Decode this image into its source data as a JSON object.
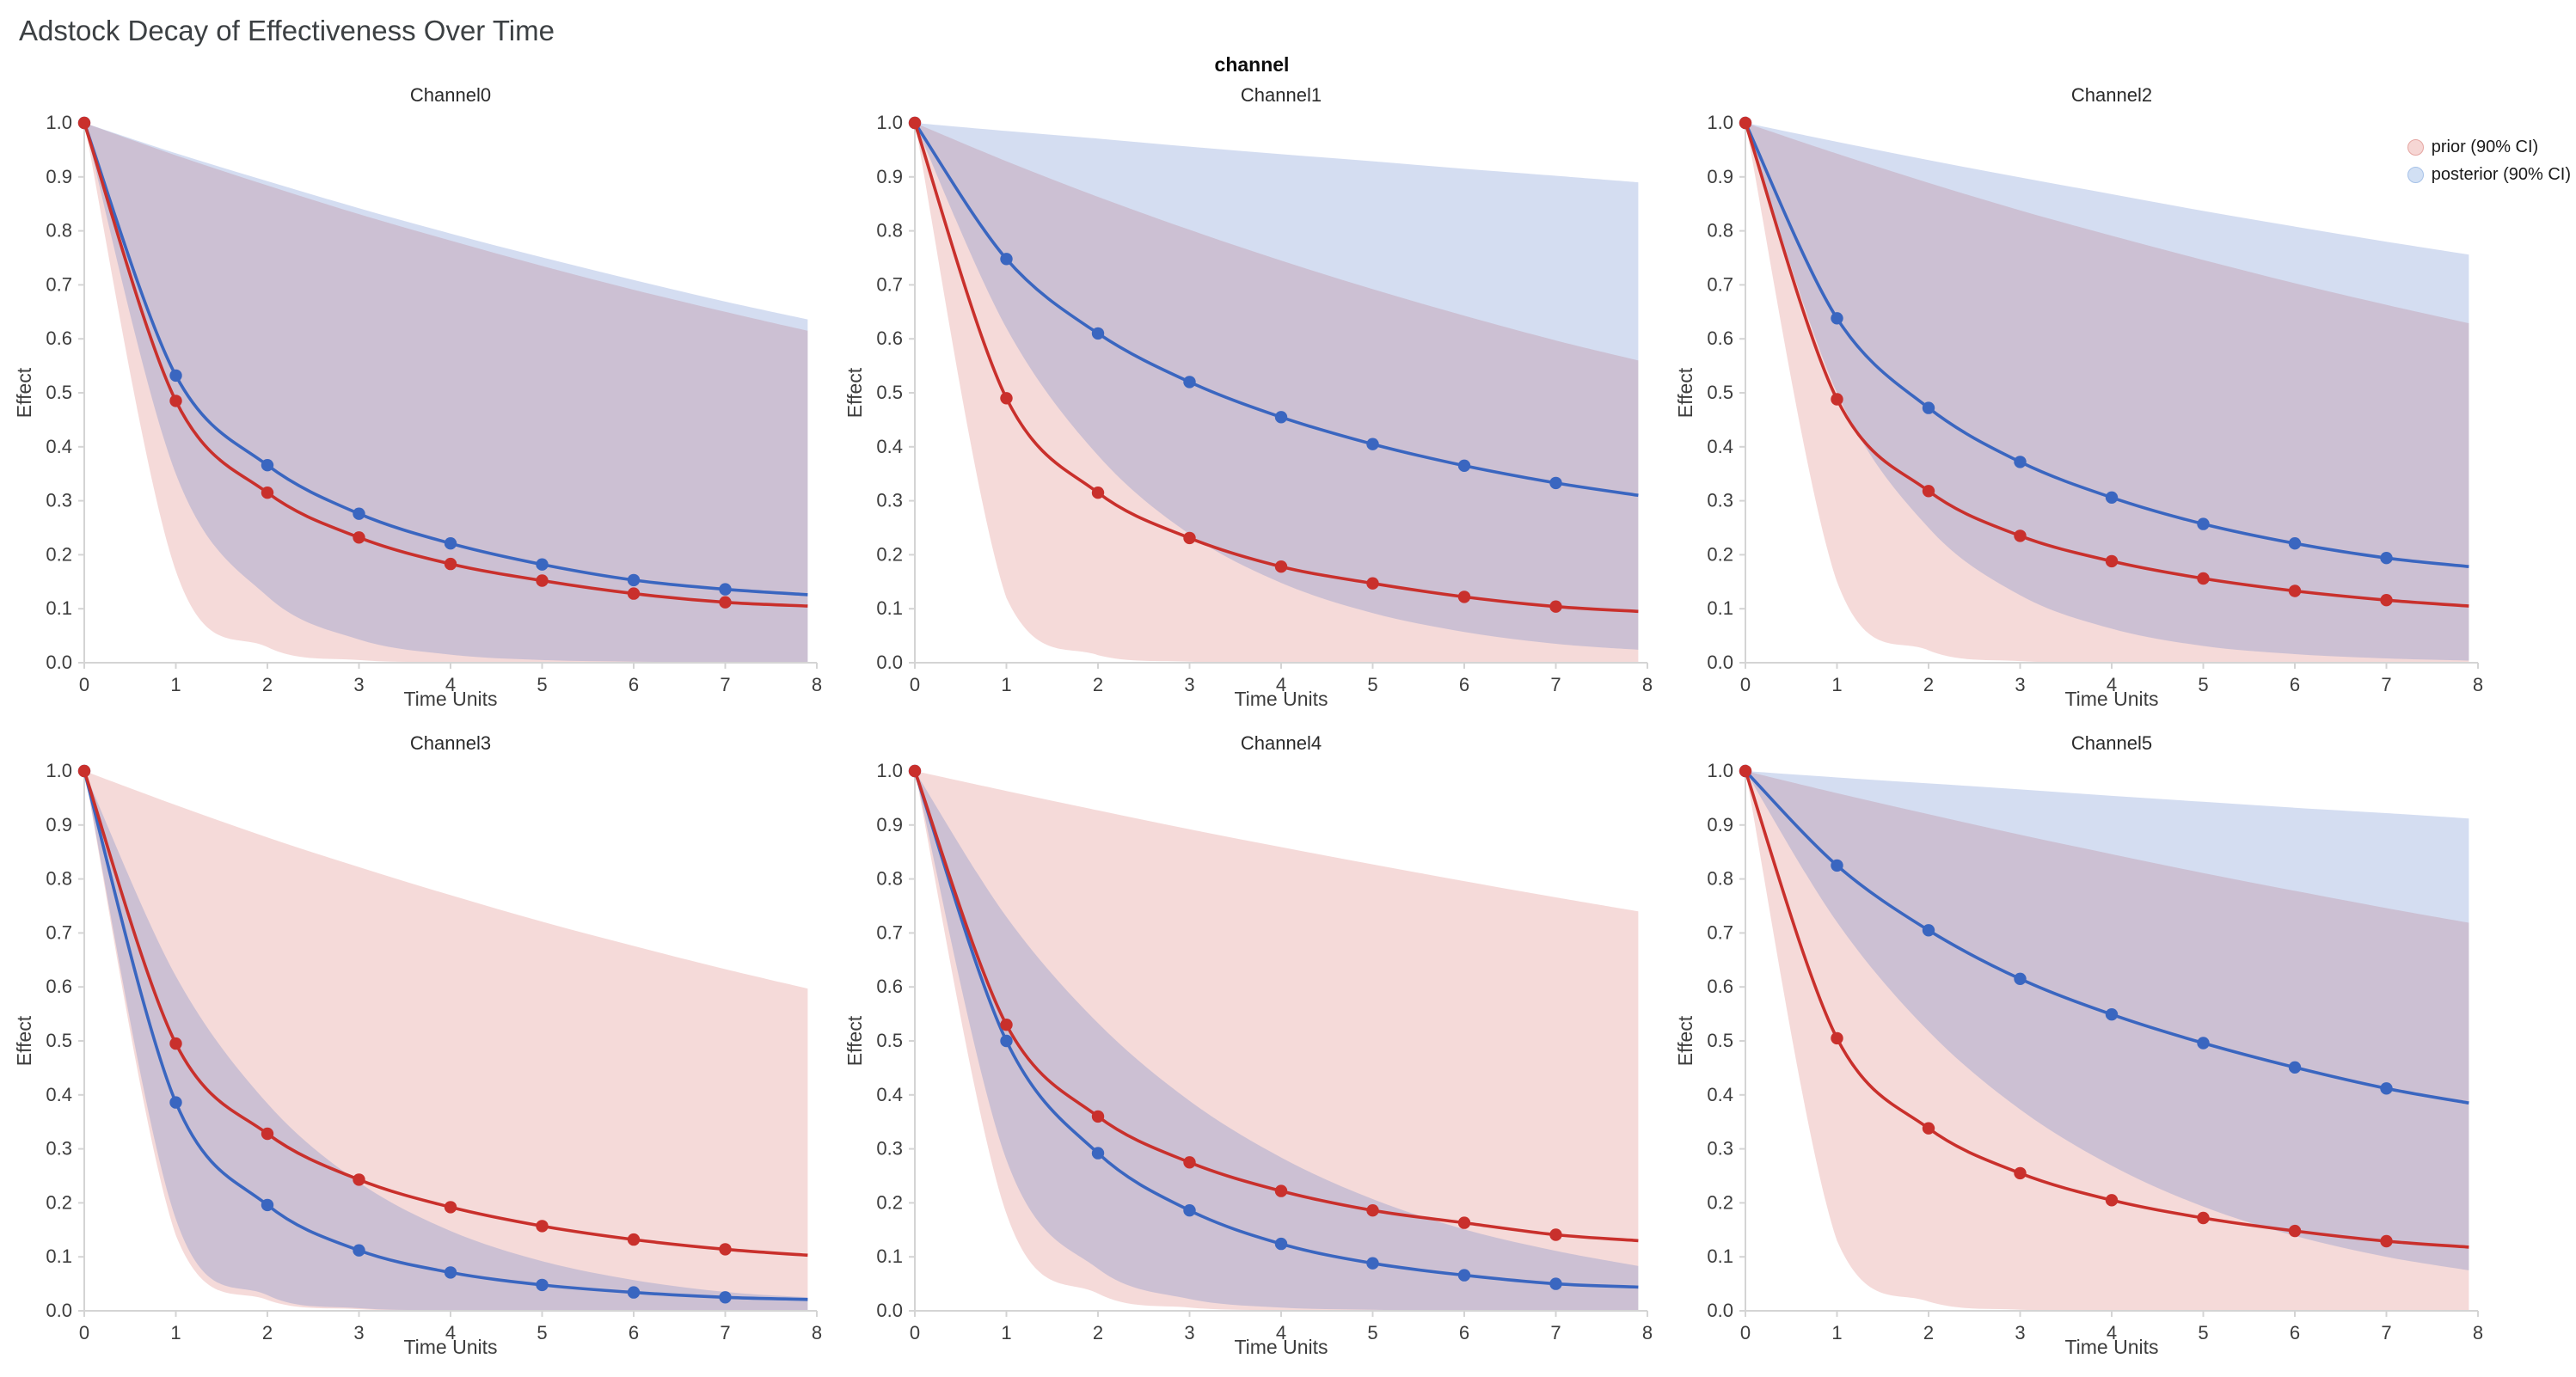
{
  "page": {
    "title": "Adstock Decay of Effectiveness Over Time",
    "facet_label": "channel"
  },
  "legend": {
    "items": [
      {
        "id": "prior",
        "label": "prior (90% CI)",
        "fill": "#f6d6d4",
        "border": "#e5a6a2"
      },
      {
        "id": "posterior",
        "label": "posterior (90% CI)",
        "fill": "#d2e0f4",
        "border": "#a7c2e8"
      }
    ]
  },
  "chart_data": {
    "type": "line",
    "title": "Adstock Decay of Effectiveness Over Time",
    "facet_title": "channel",
    "xlabel": "Time Units",
    "ylabel": "Effect",
    "xlim": [
      0,
      8
    ],
    "ylim": [
      0.0,
      1.0
    ],
    "grid": false,
    "legend_position": "top-right",
    "xticks": {
      "values": [
        0,
        1,
        2,
        3,
        4,
        5,
        6,
        7,
        8
      ],
      "labels": [
        "0",
        "1",
        "2",
        "3",
        "4",
        "5",
        "6",
        "7",
        "8"
      ]
    },
    "yticks": {
      "values": [
        0,
        0.1,
        0.2,
        0.3,
        0.4,
        0.5,
        0.6,
        0.7,
        0.8,
        0.9,
        1.0
      ],
      "labels": [
        "0.0",
        "0.1",
        "0.2",
        "0.3",
        "0.4",
        "0.5",
        "0.6",
        "0.7",
        "0.8",
        "0.9",
        "1.0"
      ]
    },
    "x": [
      0,
      1,
      2,
      3,
      4,
      5,
      6,
      7,
      7.9
    ],
    "marker_points": 8,
    "series_meta": {
      "prior": {
        "label": "prior (90% CI)",
        "color": "#c9302c",
        "band_opacity": 0.18
      },
      "posterior": {
        "label": "posterior (90% CI)",
        "color": "#3a66c0",
        "band_opacity": 0.22
      }
    },
    "facets": [
      {
        "name": "Channel0",
        "prior": {
          "mean": [
            1.0,
            0.485,
            0.315,
            0.232,
            0.183,
            0.152,
            0.128,
            0.112,
            0.105
          ],
          "upper": [
            1.0,
            0.94,
            0.884,
            0.831,
            0.782,
            0.735,
            0.691,
            0.65,
            0.615
          ],
          "lower": [
            1.0,
            0.17,
            0.029,
            0.005,
            0.001,
            0.0,
            0.0,
            0.0,
            0.0
          ]
        },
        "posterior": {
          "mean": [
            1.0,
            0.532,
            0.366,
            0.276,
            0.221,
            0.182,
            0.153,
            0.136,
            0.126
          ],
          "upper": [
            1.0,
            0.944,
            0.892,
            0.842,
            0.795,
            0.751,
            0.709,
            0.669,
            0.636
          ],
          "lower": [
            1.0,
            0.35,
            0.123,
            0.043,
            0.015,
            0.005,
            0.002,
            0.001,
            0.0
          ]
        }
      },
      {
        "name": "Channel1",
        "prior": {
          "mean": [
            1.0,
            0.49,
            0.315,
            0.231,
            0.178,
            0.147,
            0.122,
            0.104,
            0.095
          ],
          "upper": [
            1.0,
            0.929,
            0.863,
            0.802,
            0.745,
            0.692,
            0.643,
            0.597,
            0.56
          ],
          "lower": [
            1.0,
            0.12,
            0.014,
            0.002,
            0.0,
            0.0,
            0.0,
            0.0,
            0.0
          ]
        },
        "posterior": {
          "mean": [
            1.0,
            0.748,
            0.61,
            0.52,
            0.455,
            0.405,
            0.365,
            0.333,
            0.31
          ],
          "upper": [
            1.0,
            0.985,
            0.971,
            0.956,
            0.942,
            0.929,
            0.915,
            0.902,
            0.89
          ],
          "lower": [
            1.0,
            0.62,
            0.384,
            0.238,
            0.148,
            0.092,
            0.057,
            0.035,
            0.024
          ]
        }
      },
      {
        "name": "Channel2",
        "prior": {
          "mean": [
            1.0,
            0.488,
            0.318,
            0.235,
            0.188,
            0.156,
            0.133,
            0.116,
            0.105
          ],
          "upper": [
            1.0,
            0.943,
            0.889,
            0.838,
            0.791,
            0.746,
            0.703,
            0.663,
            0.629
          ],
          "lower": [
            1.0,
            0.15,
            0.023,
            0.003,
            0.0,
            0.0,
            0.0,
            0.0,
            0.0
          ]
        },
        "posterior": {
          "mean": [
            1.0,
            0.638,
            0.472,
            0.372,
            0.306,
            0.257,
            0.221,
            0.194,
            0.178
          ],
          "upper": [
            1.0,
            0.965,
            0.931,
            0.899,
            0.868,
            0.837,
            0.808,
            0.78,
            0.756
          ],
          "lower": [
            1.0,
            0.5,
            0.25,
            0.125,
            0.063,
            0.031,
            0.016,
            0.008,
            0.004
          ]
        }
      },
      {
        "name": "Channel3",
        "prior": {
          "mean": [
            1.0,
            0.495,
            0.328,
            0.243,
            0.192,
            0.157,
            0.132,
            0.114,
            0.103
          ],
          "upper": [
            1.0,
            0.937,
            0.877,
            0.822,
            0.77,
            0.721,
            0.676,
            0.633,
            0.597
          ],
          "lower": [
            1.0,
            0.14,
            0.02,
            0.003,
            0.0,
            0.0,
            0.0,
            0.0,
            0.0
          ]
        },
        "posterior": {
          "mean": [
            1.0,
            0.386,
            0.196,
            0.112,
            0.071,
            0.048,
            0.034,
            0.025,
            0.021
          ],
          "upper": [
            1.0,
            0.62,
            0.384,
            0.238,
            0.148,
            0.092,
            0.057,
            0.035,
            0.025
          ],
          "lower": [
            1.0,
            0.17,
            0.029,
            0.005,
            0.001,
            0.0,
            0.0,
            0.0,
            0.0
          ]
        }
      },
      {
        "name": "Channel4",
        "prior": {
          "mean": [
            1.0,
            0.53,
            0.36,
            0.275,
            0.222,
            0.186,
            0.163,
            0.141,
            0.13
          ],
          "upper": [
            1.0,
            0.963,
            0.927,
            0.892,
            0.859,
            0.827,
            0.796,
            0.766,
            0.74
          ],
          "lower": [
            1.0,
            0.18,
            0.032,
            0.006,
            0.001,
            0.0,
            0.0,
            0.0,
            0.0
          ]
        },
        "posterior": {
          "mean": [
            1.0,
            0.5,
            0.292,
            0.186,
            0.124,
            0.088,
            0.066,
            0.05,
            0.044
          ],
          "upper": [
            1.0,
            0.73,
            0.533,
            0.389,
            0.284,
            0.207,
            0.151,
            0.111,
            0.083
          ],
          "lower": [
            1.0,
            0.28,
            0.078,
            0.022,
            0.006,
            0.002,
            0.0,
            0.0,
            0.0
          ]
        }
      },
      {
        "name": "Channel5",
        "prior": {
          "mean": [
            1.0,
            0.505,
            0.338,
            0.255,
            0.205,
            0.172,
            0.148,
            0.129,
            0.118
          ],
          "upper": [
            1.0,
            0.959,
            0.92,
            0.882,
            0.846,
            0.811,
            0.778,
            0.746,
            0.719
          ],
          "lower": [
            1.0,
            0.13,
            0.017,
            0.002,
            0.0,
            0.0,
            0.0,
            0.0,
            0.0
          ]
        },
        "posterior": {
          "mean": [
            1.0,
            0.825,
            0.705,
            0.615,
            0.549,
            0.496,
            0.451,
            0.412,
            0.385
          ],
          "upper": [
            1.0,
            0.988,
            0.977,
            0.966,
            0.954,
            0.943,
            0.932,
            0.922,
            0.912
          ],
          "lower": [
            1.0,
            0.72,
            0.518,
            0.373,
            0.269,
            0.193,
            0.139,
            0.1,
            0.075
          ]
        }
      }
    ]
  }
}
